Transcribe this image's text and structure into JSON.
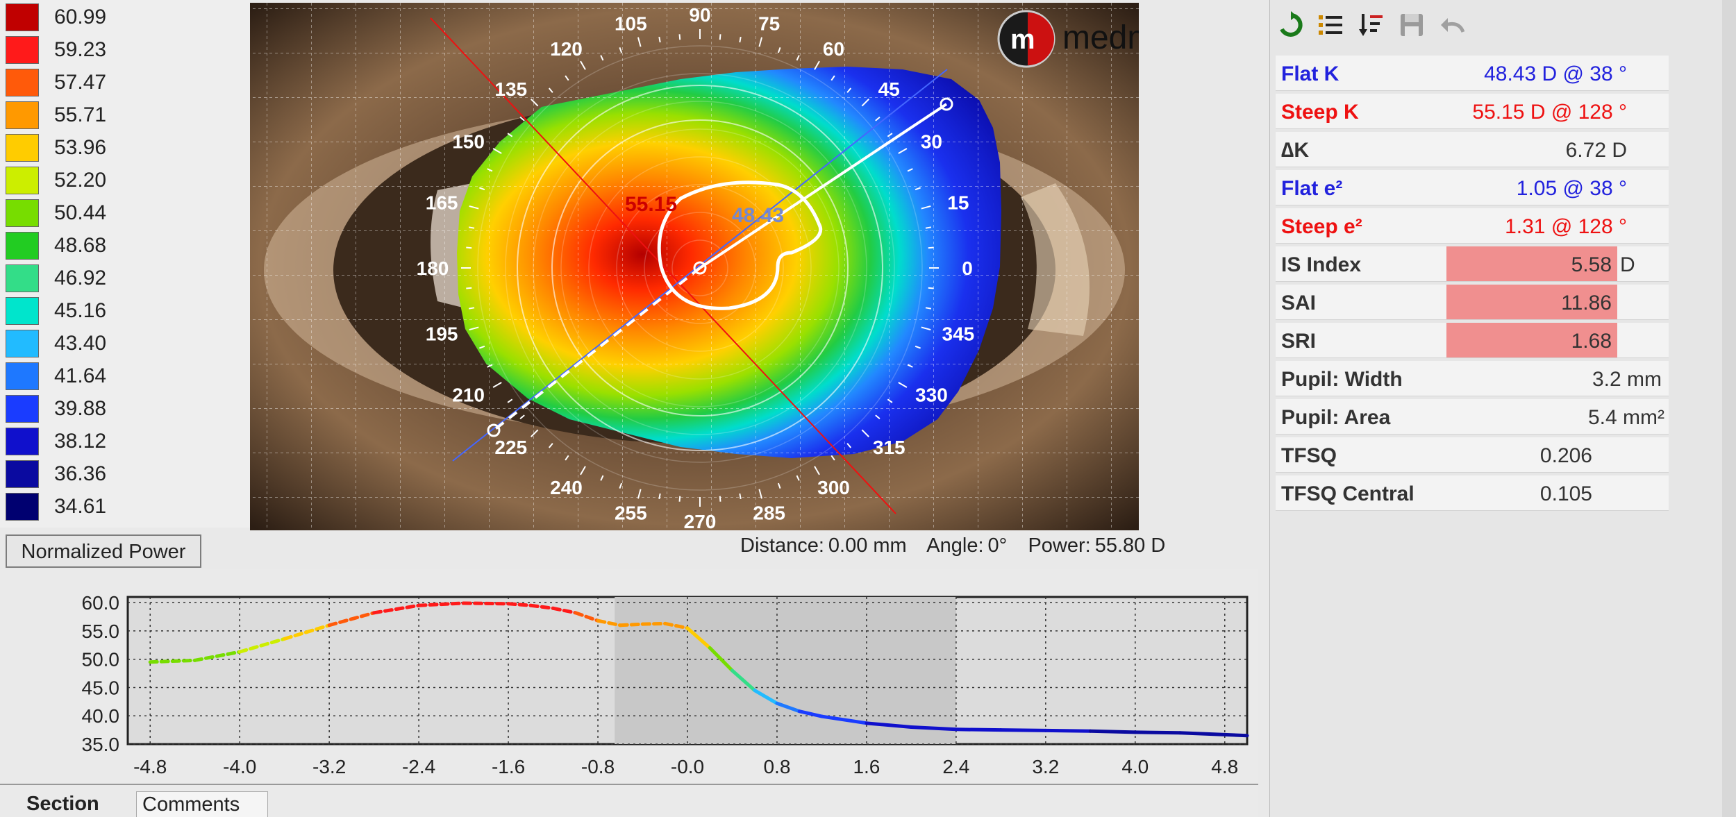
{
  "colors": {
    "flat": "#2222dd",
    "steep": "#ee1111",
    "highlight": "#f08f8f",
    "graph_shade": "#c8c8c8"
  },
  "scale": {
    "values": [
      "60.99",
      "59.23",
      "57.47",
      "55.71",
      "53.96",
      "52.20",
      "50.44",
      "48.68",
      "46.92",
      "45.16",
      "43.40",
      "41.64",
      "39.88",
      "38.12",
      "36.36",
      "34.61"
    ],
    "colors": [
      "#c00000",
      "#ff1a1a",
      "#ff5a0a",
      "#ff9900",
      "#ffcc00",
      "#ccee00",
      "#77dd00",
      "#22cc22",
      "#33dd88",
      "#00e5cc",
      "#22bbff",
      "#1e78ff",
      "#1a3cff",
      "#1010cc",
      "#0a0aa0",
      "#000070"
    ],
    "mode": "Normalized Power"
  },
  "map": {
    "brand": "medmont",
    "logo_letter": "m",
    "steep_marker": "55.15",
    "flat_marker": "48.43",
    "angle_labels": [
      "0",
      "15",
      "30",
      "45",
      "60",
      "75",
      "90",
      "105",
      "120",
      "135",
      "150",
      "165",
      "180",
      "195",
      "210",
      "225",
      "240",
      "255",
      "270",
      "285",
      "300",
      "315",
      "330",
      "345"
    ]
  },
  "readout": {
    "distance_label": "Distance:",
    "distance_value": "0.00 mm",
    "angle_label": "Angle:",
    "angle_value": "0°",
    "power_label": "Power:",
    "power_value": "55.80 D"
  },
  "toolbar": {
    "icons": [
      "refresh-icon",
      "list-icon",
      "sort-icon",
      "save-icon",
      "undo-icon"
    ]
  },
  "stats": {
    "flat_k": {
      "label": "Flat K",
      "value": "48.43 D @  38 °"
    },
    "steep_k": {
      "label": "Steep K",
      "value": "55.15 D @ 128 °"
    },
    "delta_k": {
      "label": "∆K",
      "value": "6.72 D"
    },
    "flat_e": {
      "label": "Flat e²",
      "value": "1.05 @  38 °"
    },
    "steep_e": {
      "label": "Steep e²",
      "value": "1.31 @ 128 °"
    },
    "is_index": {
      "label": "IS Index",
      "value": "5.58",
      "unit": "D"
    },
    "sai": {
      "label": "SAI",
      "value": "11.86"
    },
    "sri": {
      "label": "SRI",
      "value": "1.68"
    },
    "pupil_width": {
      "label": "Pupil: Width",
      "value": "3.2 mm"
    },
    "pupil_area": {
      "label": "Pupil: Area",
      "value": "5.4 mm²"
    },
    "tfsq": {
      "label": "TFSQ",
      "value": "0.206"
    },
    "tfsq_central": {
      "label": "TFSQ Central",
      "value": "0.105"
    }
  },
  "tabs": {
    "section": "Section",
    "comments": "Comments"
  },
  "chart_data": {
    "type": "line",
    "title": "",
    "xlabel": "",
    "ylabel": "",
    "x_ticks": [
      "-4.8",
      "-4.0",
      "-3.2",
      "-2.4",
      "-1.6",
      "-0.8",
      "-0.0",
      "0.8",
      "1.6",
      "2.4",
      "3.2",
      "4.0",
      "4.8"
    ],
    "y_ticks": [
      "60.0",
      "55.0",
      "50.0",
      "45.0",
      "40.0",
      "35.0"
    ],
    "xlim": [
      -5.0,
      5.0
    ],
    "ylim": [
      35.0,
      61.0
    ],
    "grid": true,
    "shaded_region": [
      -0.65,
      2.4
    ],
    "series": [
      {
        "x": [
          -4.8,
          -4.4,
          -4.0,
          -3.6,
          -3.2,
          -2.8,
          -2.4,
          -2.0,
          -1.6,
          -1.4,
          -1.2,
          -1.0,
          -0.8,
          -0.6,
          -0.4,
          -0.2,
          0.0,
          0.2,
          0.4,
          0.6,
          0.8,
          1.0,
          1.2,
          1.6,
          2.0,
          2.4,
          2.8,
          3.2,
          3.6,
          4.0,
          4.4,
          5.0
        ],
        "y": [
          49.5,
          49.8,
          51.3,
          53.6,
          56.0,
          58.2,
          59.5,
          59.9,
          59.8,
          59.5,
          59.0,
          58.2,
          56.8,
          56.0,
          56.2,
          56.3,
          55.5,
          52.0,
          48.0,
          44.5,
          42.2,
          40.8,
          39.9,
          38.7,
          38.0,
          37.6,
          37.5,
          37.4,
          37.3,
          37.1,
          37.0,
          36.5
        ]
      }
    ]
  }
}
